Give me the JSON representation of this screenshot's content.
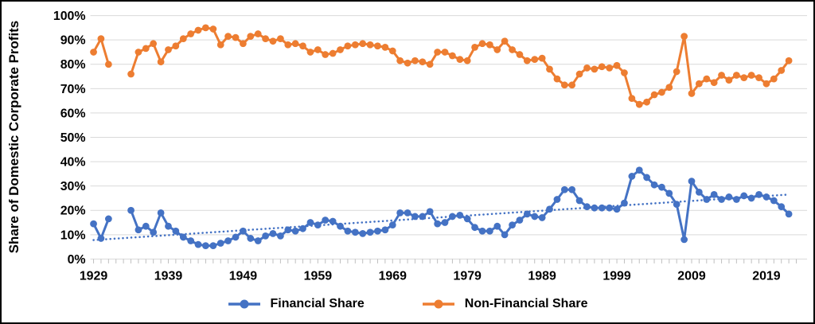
{
  "figure": {
    "background": "#FFFFFF",
    "border_color": "#000000",
    "gridline_color": "#D9D9D9",
    "tick_color": "#BFBFBF"
  },
  "chart_data": {
    "type": "line",
    "title": "",
    "xlabel": "",
    "ylabel": "Share of Domestic Corporate Profits",
    "ylim": [
      0,
      100
    ],
    "y_tick_labels": [
      "0%",
      "10%",
      "20%",
      "30%",
      "40%",
      "50%",
      "60%",
      "70%",
      "80%",
      "90%",
      "100%"
    ],
    "x_decade_labels": [
      "1929",
      "1939",
      "1949",
      "1959",
      "1969",
      "1979",
      "1989",
      "1999",
      "2009",
      "2019"
    ],
    "x_year_range": [
      1929,
      2022
    ],
    "missing_years": [
      1932,
      1933
    ],
    "grid": "horizontal",
    "legend_position": "bottom",
    "marker": "circle",
    "series": [
      {
        "name": "Financial Share",
        "color": "#4472C4",
        "points": [
          [
            1929,
            14.5
          ],
          [
            1930,
            8.5
          ],
          [
            1931,
            16.5
          ],
          [
            1934,
            20
          ],
          [
            1935,
            12
          ],
          [
            1936,
            13.5
          ],
          [
            1937,
            11
          ],
          [
            1938,
            19
          ],
          [
            1939,
            13.5
          ],
          [
            1940,
            11.5
          ],
          [
            1941,
            9
          ],
          [
            1942,
            7.5
          ],
          [
            1943,
            6
          ],
          [
            1944,
            5.5
          ],
          [
            1945,
            5.5
          ],
          [
            1946,
            6.5
          ],
          [
            1947,
            7.5
          ],
          [
            1948,
            9
          ],
          [
            1949,
            11.5
          ],
          [
            1950,
            8.5
          ],
          [
            1951,
            7.5
          ],
          [
            1952,
            9.5
          ],
          [
            1953,
            10.5
          ],
          [
            1954,
            9.5
          ],
          [
            1955,
            12
          ],
          [
            1956,
            11.5
          ],
          [
            1957,
            12.5
          ],
          [
            1958,
            15
          ],
          [
            1959,
            14
          ],
          [
            1960,
            16
          ],
          [
            1961,
            15.5
          ],
          [
            1962,
            13.5
          ],
          [
            1963,
            11.5
          ],
          [
            1964,
            11
          ],
          [
            1965,
            10.5
          ],
          [
            1966,
            11
          ],
          [
            1967,
            11.5
          ],
          [
            1968,
            12
          ],
          [
            1969,
            14
          ],
          [
            1970,
            19
          ],
          [
            1971,
            19
          ],
          [
            1972,
            17.5
          ],
          [
            1973,
            17.5
          ],
          [
            1974,
            19.5
          ],
          [
            1975,
            14.5
          ],
          [
            1976,
            15
          ],
          [
            1977,
            17.5
          ],
          [
            1978,
            18
          ],
          [
            1979,
            16.5
          ],
          [
            1980,
            13
          ],
          [
            1981,
            11.5
          ],
          [
            1982,
            11.5
          ],
          [
            1983,
            13.5
          ],
          [
            1984,
            10
          ],
          [
            1985,
            14
          ],
          [
            1986,
            16
          ],
          [
            1987,
            18.5
          ],
          [
            1988,
            17.5
          ],
          [
            1989,
            17
          ],
          [
            1990,
            20.5
          ],
          [
            1991,
            24.5
          ],
          [
            1992,
            28.5
          ],
          [
            1993,
            28.5
          ],
          [
            1994,
            24
          ],
          [
            1995,
            21.5
          ],
          [
            1996,
            21
          ],
          [
            1997,
            21
          ],
          [
            1998,
            21
          ],
          [
            1999,
            20.5
          ],
          [
            2000,
            23
          ],
          [
            2001,
            34
          ],
          [
            2002,
            36.5
          ],
          [
            2003,
            33.5
          ],
          [
            2004,
            30.5
          ],
          [
            2005,
            29.5
          ],
          [
            2006,
            27
          ],
          [
            2007,
            22.5
          ],
          [
            2008,
            8
          ],
          [
            2009,
            32
          ],
          [
            2010,
            27.5
          ],
          [
            2011,
            24.5
          ],
          [
            2012,
            26.5
          ],
          [
            2013,
            24.5
          ],
          [
            2014,
            25.5
          ],
          [
            2015,
            24.5
          ],
          [
            2016,
            26
          ],
          [
            2017,
            25
          ],
          [
            2018,
            26.5
          ],
          [
            2019,
            25.5
          ],
          [
            2020,
            24
          ],
          [
            2021,
            21.5
          ],
          [
            2022,
            18.5
          ]
        ]
      },
      {
        "name": "Non-Financial Share",
        "color": "#ED7D31",
        "points": [
          [
            1929,
            85
          ],
          [
            1930,
            90.5
          ],
          [
            1931,
            80
          ],
          [
            1934,
            76
          ],
          [
            1935,
            85
          ],
          [
            1936,
            86.5
          ],
          [
            1937,
            88.5
          ],
          [
            1938,
            81
          ],
          [
            1939,
            86
          ],
          [
            1940,
            87.5
          ],
          [
            1941,
            90.5
          ],
          [
            1942,
            92.5
          ],
          [
            1943,
            94
          ],
          [
            1944,
            95
          ],
          [
            1945,
            94.5
          ],
          [
            1946,
            88
          ],
          [
            1947,
            91.5
          ],
          [
            1948,
            91
          ],
          [
            1949,
            88.5
          ],
          [
            1950,
            91.5
          ],
          [
            1951,
            92.5
          ],
          [
            1952,
            90.5
          ],
          [
            1953,
            89.5
          ],
          [
            1954,
            90.5
          ],
          [
            1955,
            88
          ],
          [
            1956,
            88.5
          ],
          [
            1957,
            87.5
          ],
          [
            1958,
            85
          ],
          [
            1959,
            86
          ],
          [
            1960,
            84
          ],
          [
            1961,
            84.5
          ],
          [
            1962,
            86
          ],
          [
            1963,
            87.5
          ],
          [
            1964,
            88
          ],
          [
            1965,
            88.5
          ],
          [
            1966,
            88
          ],
          [
            1967,
            87.5
          ],
          [
            1968,
            87
          ],
          [
            1969,
            85.5
          ],
          [
            1970,
            81.5
          ],
          [
            1971,
            80.5
          ],
          [
            1972,
            81.5
          ],
          [
            1973,
            81
          ],
          [
            1974,
            80
          ],
          [
            1975,
            85
          ],
          [
            1976,
            85
          ],
          [
            1977,
            83.5
          ],
          [
            1978,
            82
          ],
          [
            1979,
            81.5
          ],
          [
            1980,
            87
          ],
          [
            1981,
            88.5
          ],
          [
            1982,
            88
          ],
          [
            1983,
            86
          ],
          [
            1984,
            89.5
          ],
          [
            1985,
            86
          ],
          [
            1986,
            84
          ],
          [
            1987,
            81.5
          ],
          [
            1988,
            82
          ],
          [
            1989,
            82.5
          ],
          [
            1990,
            78
          ],
          [
            1991,
            74
          ],
          [
            1992,
            71.5
          ],
          [
            1993,
            71.5
          ],
          [
            1994,
            76
          ],
          [
            1995,
            78.5
          ],
          [
            1996,
            78
          ],
          [
            1997,
            79
          ],
          [
            1998,
            78.5
          ],
          [
            1999,
            79.5
          ],
          [
            2000,
            76.5
          ],
          [
            2001,
            66
          ],
          [
            2002,
            63.5
          ],
          [
            2003,
            64.5
          ],
          [
            2004,
            67.5
          ],
          [
            2005,
            68.5
          ],
          [
            2006,
            70.5
          ],
          [
            2007,
            77
          ],
          [
            2008,
            91.5
          ],
          [
            2009,
            68
          ],
          [
            2010,
            72
          ],
          [
            2011,
            74
          ],
          [
            2012,
            72.5
          ],
          [
            2013,
            75.5
          ],
          [
            2014,
            73.5
          ],
          [
            2015,
            75.5
          ],
          [
            2016,
            74.5
          ],
          [
            2017,
            75.5
          ],
          [
            2018,
            74.5
          ],
          [
            2019,
            72
          ],
          [
            2020,
            74
          ],
          [
            2021,
            77.5
          ],
          [
            2022,
            81.5
          ]
        ]
      }
    ],
    "trendline": {
      "name": "Financial Share linear trend",
      "color": "#4472C4",
      "style": "dotted",
      "points": [
        [
          1929,
          7.8
        ],
        [
          2022,
          26.5
        ]
      ]
    }
  }
}
